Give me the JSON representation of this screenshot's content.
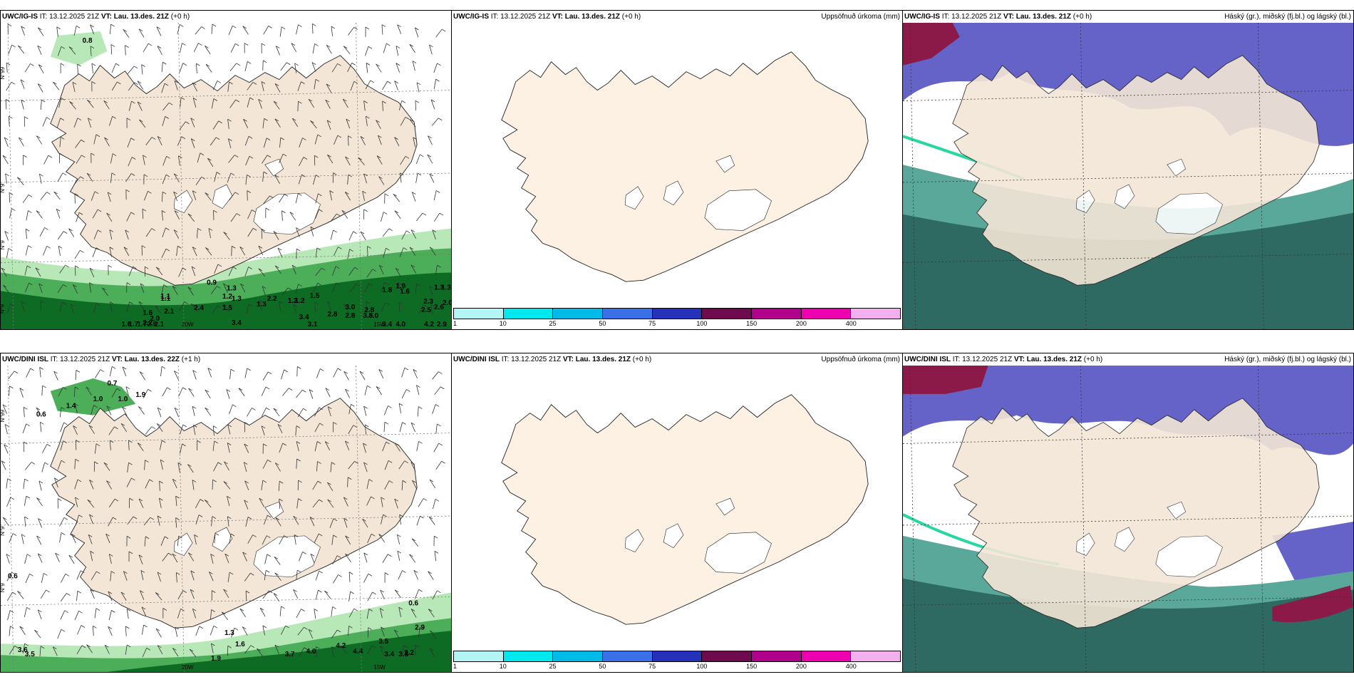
{
  "rows": [
    {
      "wind": {
        "model": "UWC/IG-IS",
        "it_label": "IT:",
        "it_value": "13.12.2025 21Z",
        "vt_label": "VT:",
        "vt_value": "Lau. 13.des. 21Z",
        "lead": "(+0 h)",
        "lat_labels": [
          "N°99",
          "N°9",
          "N°9",
          "N°9"
        ],
        "lon_labels": [
          "20W",
          "15W"
        ],
        "values": [
          "0.8",
          "0.9",
          "1.1",
          "1.3",
          "2.4",
          "1.2",
          "1.5",
          "1.3",
          "1.1",
          "1.6",
          "2.1",
          "2.0",
          "2.2",
          "1.6",
          "1.7",
          "1.7",
          "2.6",
          "2.1",
          "3.4",
          "2.2",
          "1.3",
          "1.2",
          "1.2",
          "1.5",
          "1.8",
          "1.9",
          "1.6",
          "1.3",
          "1.3",
          "3.0",
          "2.8",
          "2.8",
          "3.8",
          "3.0",
          "2.3",
          "2.5",
          "2.0",
          "2.6",
          "2.8",
          "3.4",
          "3.1",
          "3.4",
          "4.0",
          "4.2",
          "2.9"
        ]
      },
      "precip": {
        "model": "UWC/IG-IS",
        "it_label": "IT:",
        "it_value": "13.12.2025 21Z",
        "vt_label": "VT:",
        "vt_value": "Lau. 13.des. 21Z",
        "lead": "(+0 h)",
        "title_right": "Uppsöfnuð úrkoma (mm)"
      },
      "cloud": {
        "model": "UWC/IG-IS",
        "it_label": "IT:",
        "it_value": "13.12.2025 21Z",
        "vt_label": "VT:",
        "vt_value": "Lau. 13.des. 21Z",
        "lead": "(+0 h)",
        "title_right": "Háský (gr.), miðský (fj.bl.) og lágský (bl.)"
      }
    },
    {
      "wind": {
        "model": "UWC/DINI ISL",
        "it_label": "IT:",
        "it_value": "13.12.2025 21Z",
        "vt_label": "VT:",
        "vt_value": "Lau. 13.des. 22Z",
        "lead": "(+1 h)",
        "lat_labels": [
          "N°99",
          "N°9",
          "N°9"
        ],
        "lon_labels": [
          "20W",
          "15W"
        ],
        "values": [
          "0.7",
          "1.0",
          "1.0",
          "1.9",
          "0.6",
          "1.4",
          "0.6",
          "1.3",
          "0.6",
          "2.9",
          "3.6",
          "3.5",
          "1.6",
          "1.9",
          "3.7",
          "4.0",
          "4.2",
          "4.4",
          "3.5",
          "3.4",
          "3.3",
          "2.2"
        ]
      },
      "precip": {
        "model": "UWC/DINI ISL",
        "it_label": "IT:",
        "it_value": "13.12.2025 21Z",
        "vt_label": "VT:",
        "vt_value": "Lau. 13.des. 21Z",
        "lead": "(+0 h)",
        "title_right": "Uppsöfnuð úrkoma (mm)"
      },
      "cloud": {
        "model": "UWC/DINI ISL",
        "it_label": "IT:",
        "it_value": "13.12.2025 21Z",
        "vt_label": "VT:",
        "vt_value": "Lau. 13.des. 21Z",
        "lead": "(+0 h)",
        "title_right": "Háský (gr.), miðský (fj.bl.) og lágský (bl.)"
      }
    }
  ],
  "legend": {
    "ticks": [
      "1",
      "10",
      "25",
      "50",
      "75",
      "100",
      "150",
      "200",
      "400"
    ],
    "colors": [
      "#b3f5f5",
      "#00e8ee",
      "#00bbe8",
      "#3a6fe8",
      "#2431b8",
      "#6e0a4e",
      "#b0008c",
      "#ee00b0",
      "#f4b0ee"
    ]
  },
  "colors": {
    "land": "#f3e6d6",
    "precip_land": "#fdf1e4",
    "green_light": "#b9e8b8",
    "green_mid": "#4cae58",
    "green_dark": "#0d6b24",
    "cloud_high": "#6563c8",
    "cloud_low": "#2e6a62",
    "cloud_mid": "#5aa89a",
    "cloud_red": "#8b1a48"
  }
}
